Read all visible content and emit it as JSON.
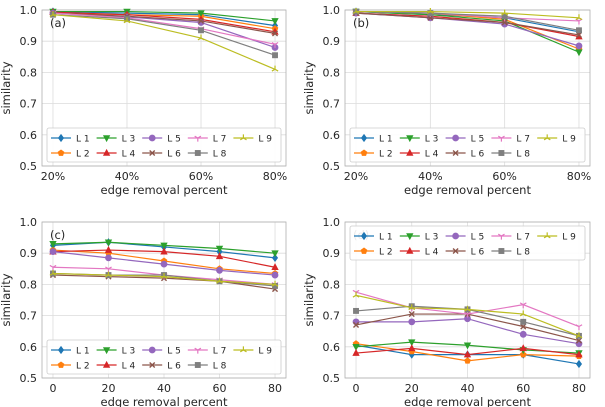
{
  "colors": {
    "L 1": "#1f77b4",
    "L 2": "#ff7f0e",
    "L 3": "#2ca02c",
    "L 4": "#d62728",
    "L 5": "#9467bd",
    "L 6": "#8c564b",
    "L 7": "#e377c2",
    "L 8": "#7f7f7f",
    "L 9": "#bcbd22"
  },
  "markers": {
    "L 1": "diamond",
    "L 2": "pentagon",
    "L 3": "triangle-down",
    "L 4": "triangle-up",
    "L 5": "circle",
    "L 6": "x",
    "L 7": "tri-down",
    "L 8": "square",
    "L 9": "tri-up"
  },
  "legend_order": [
    "L 1",
    "L 3",
    "L 5",
    "L 7",
    "L 9",
    "L 2",
    "L 4",
    "L 6",
    "L 8"
  ],
  "chart_data": [
    {
      "type": "line",
      "panel_label": "(a)",
      "xlabel": "edge removal percent",
      "ylabel": "similarity",
      "categories": [
        "20%",
        "40%",
        "60%",
        "80%"
      ],
      "ylim": [
        0.5,
        1.0
      ],
      "yticks": [
        "0.5",
        "0.6",
        "0.7",
        "0.8",
        "0.9",
        "1.0"
      ],
      "grid": true,
      "legend": "lower-left",
      "series": [
        {
          "name": "L 1",
          "values": [
            0.995,
            0.99,
            0.985,
            0.95
          ]
        },
        {
          "name": "L 2",
          "values": [
            0.99,
            0.985,
            0.98,
            0.94
          ]
        },
        {
          "name": "L 3",
          "values": [
            0.995,
            0.995,
            0.99,
            0.965
          ]
        },
        {
          "name": "L 4",
          "values": [
            0.993,
            0.985,
            0.97,
            0.93
          ]
        },
        {
          "name": "L 5",
          "values": [
            0.99,
            0.978,
            0.96,
            0.88
          ]
        },
        {
          "name": "L 6",
          "values": [
            0.99,
            0.98,
            0.965,
            0.925
          ]
        },
        {
          "name": "L 7",
          "values": [
            0.99,
            0.975,
            0.94,
            0.89
          ]
        },
        {
          "name": "L 8",
          "values": [
            0.985,
            0.972,
            0.935,
            0.855
          ]
        },
        {
          "name": "L 9",
          "values": [
            0.985,
            0.965,
            0.91,
            0.81
          ]
        }
      ]
    },
    {
      "type": "line",
      "panel_label": "(b)",
      "xlabel": "edge removal percent",
      "ylabel": "similarity",
      "categories": [
        "20%",
        "40%",
        "60%",
        "80%"
      ],
      "ylim": [
        0.5,
        1.0
      ],
      "yticks": [
        "0.5",
        "0.6",
        "0.7",
        "0.8",
        "0.9",
        "1.0"
      ],
      "grid": true,
      "legend": "lower-left",
      "series": [
        {
          "name": "L 1",
          "values": [
            0.995,
            0.985,
            0.975,
            0.93
          ]
        },
        {
          "name": "L 2",
          "values": [
            0.995,
            0.99,
            0.97,
            0.875
          ]
        },
        {
          "name": "L 3",
          "values": [
            0.995,
            0.985,
            0.965,
            0.865
          ]
        },
        {
          "name": "L 4",
          "values": [
            0.99,
            0.98,
            0.96,
            0.915
          ]
        },
        {
          "name": "L 5",
          "values": [
            0.99,
            0.975,
            0.955,
            0.885
          ]
        },
        {
          "name": "L 6",
          "values": [
            0.99,
            0.975,
            0.96,
            0.92
          ]
        },
        {
          "name": "L 7",
          "values": [
            0.995,
            0.99,
            0.975,
            0.965
          ]
        },
        {
          "name": "L 8",
          "values": [
            0.995,
            0.99,
            0.98,
            0.935
          ]
        },
        {
          "name": "L 9",
          "values": [
            0.995,
            0.995,
            0.99,
            0.975
          ]
        }
      ]
    },
    {
      "type": "line",
      "panel_label": "(c)",
      "xlabel": "edge removal percent",
      "ylabel": "similarity",
      "categories": [
        "0",
        "20",
        "40",
        "60",
        "80"
      ],
      "ylim": [
        0.5,
        1.0
      ],
      "yticks": [
        "0.5",
        "0.6",
        "0.7",
        "0.8",
        "0.9",
        "1.0"
      ],
      "grid": true,
      "legend": "lower-left",
      "series": [
        {
          "name": "L 1",
          "values": [
            0.925,
            0.935,
            0.92,
            0.905,
            0.885
          ]
        },
        {
          "name": "L 2",
          "values": [
            0.91,
            0.9,
            0.875,
            0.85,
            0.835
          ]
        },
        {
          "name": "L 3",
          "values": [
            0.93,
            0.935,
            0.925,
            0.915,
            0.9
          ]
        },
        {
          "name": "L 4",
          "values": [
            0.905,
            0.91,
            0.905,
            0.89,
            0.855
          ]
        },
        {
          "name": "L 5",
          "values": [
            0.905,
            0.885,
            0.865,
            0.845,
            0.83
          ]
        },
        {
          "name": "L 6",
          "values": [
            0.83,
            0.825,
            0.82,
            0.81,
            0.785
          ]
        },
        {
          "name": "L 7",
          "values": [
            0.855,
            0.85,
            0.83,
            0.815,
            0.8
          ]
        },
        {
          "name": "L 8",
          "values": [
            0.835,
            0.83,
            0.83,
            0.81,
            0.795
          ]
        },
        {
          "name": "L 9",
          "values": [
            0.835,
            0.83,
            0.825,
            0.81,
            0.8
          ]
        }
      ]
    },
    {
      "type": "line",
      "panel_label": "(d)",
      "xlabel": "edge removal percent",
      "ylabel": "similarity",
      "categories": [
        "0",
        "20",
        "40",
        "60",
        "80"
      ],
      "ylim": [
        0.5,
        1.0
      ],
      "yticks": [
        "0.5",
        "0.6",
        "0.7",
        "0.8",
        "0.9",
        "1.0"
      ],
      "grid": true,
      "legend": "top-left",
      "series": [
        {
          "name": "L 1",
          "values": [
            0.605,
            0.575,
            0.575,
            0.575,
            0.545
          ]
        },
        {
          "name": "L 2",
          "values": [
            0.61,
            0.585,
            0.555,
            0.575,
            0.57
          ]
        },
        {
          "name": "L 3",
          "values": [
            0.6,
            0.615,
            0.605,
            0.59,
            0.58
          ]
        },
        {
          "name": "L 4",
          "values": [
            0.58,
            0.595,
            0.575,
            0.595,
            0.575
          ]
        },
        {
          "name": "L 5",
          "values": [
            0.68,
            0.68,
            0.69,
            0.64,
            0.61
          ]
        },
        {
          "name": "L 6",
          "values": [
            0.67,
            0.705,
            0.705,
            0.665,
            0.62
          ]
        },
        {
          "name": "L 7",
          "values": [
            0.775,
            0.725,
            0.705,
            0.735,
            0.665
          ]
        },
        {
          "name": "L 8",
          "values": [
            0.715,
            0.73,
            0.72,
            0.68,
            0.635
          ]
        },
        {
          "name": "L 9",
          "values": [
            0.765,
            0.725,
            0.72,
            0.705,
            0.635
          ]
        }
      ]
    }
  ]
}
